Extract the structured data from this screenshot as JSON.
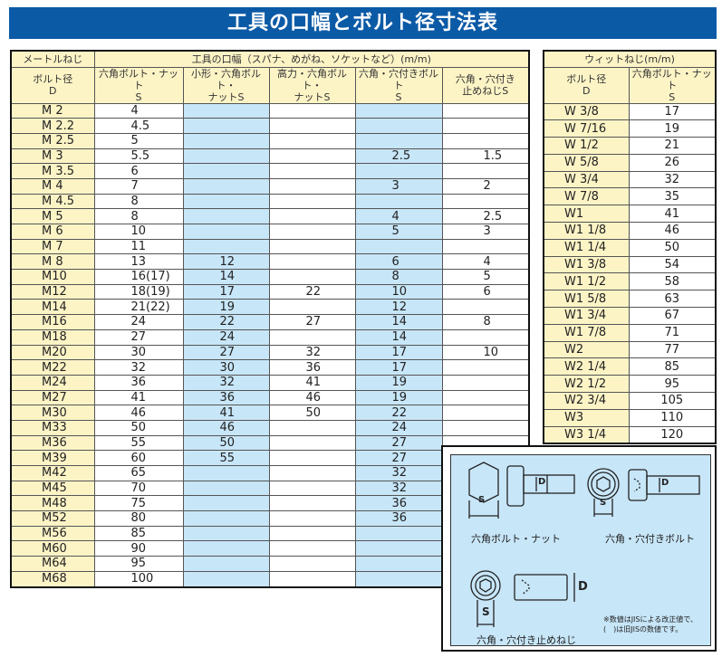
{
  "title": "工具の口幅とボルト径寸法表",
  "metric": {
    "header_group_left": "メートルねじ",
    "header_group_right": "工具の口幅（スパナ、めがね、ソケットなど）(m/m)",
    "columns": [
      "ボルト径\nD",
      "六角ボルト・ナット\nS",
      "小形・六角ボルト・\nナットS",
      "高力・六角ボルト・\nナットS",
      "六角・穴付きボルト\nS",
      "六角・穴付き\n止めねじS"
    ],
    "rows": [
      [
        "M 2",
        "4",
        "",
        "",
        "",
        ""
      ],
      [
        "M 2.2",
        "4.5",
        "",
        "",
        "",
        ""
      ],
      [
        "M 2.5",
        "5",
        "",
        "",
        "",
        ""
      ],
      [
        "M 3",
        "5.5",
        "",
        "",
        "2.5",
        "1.5"
      ],
      [
        "M 3.5",
        "6",
        "",
        "",
        "",
        ""
      ],
      [
        "M 4",
        "7",
        "",
        "",
        "3",
        "2"
      ],
      [
        "M 4.5",
        "8",
        "",
        "",
        "",
        ""
      ],
      [
        "M 5",
        "8",
        "",
        "",
        "4",
        "2.5"
      ],
      [
        "M 6",
        "10",
        "",
        "",
        "5",
        "3"
      ],
      [
        "M 7",
        "11",
        "",
        "",
        "",
        ""
      ],
      [
        "M 8",
        "13",
        "12",
        "",
        "6",
        "4"
      ],
      [
        "M10",
        "16(17)",
        "14",
        "",
        "8",
        "5"
      ],
      [
        "M12",
        "18(19)",
        "17",
        "22",
        "10",
        "6"
      ],
      [
        "M14",
        "21(22)",
        "19",
        "",
        "12",
        ""
      ],
      [
        "M16",
        "24",
        "22",
        "27",
        "14",
        "8"
      ],
      [
        "M18",
        "27",
        "24",
        "",
        "14",
        ""
      ],
      [
        "M20",
        "30",
        "27",
        "32",
        "17",
        "10"
      ],
      [
        "M22",
        "32",
        "30",
        "36",
        "17",
        ""
      ],
      [
        "M24",
        "36",
        "32",
        "41",
        "19",
        ""
      ],
      [
        "M27",
        "41",
        "36",
        "46",
        "19",
        ""
      ],
      [
        "M30",
        "46",
        "41",
        "50",
        "22",
        ""
      ],
      [
        "M33",
        "50",
        "46",
        "",
        "24",
        ""
      ],
      [
        "M36",
        "55",
        "50",
        "",
        "27",
        ""
      ],
      [
        "M39",
        "60",
        "55",
        "",
        "27",
        ""
      ],
      [
        "M42",
        "65",
        "",
        "",
        "32",
        ""
      ],
      [
        "M45",
        "70",
        "",
        "",
        "32",
        ""
      ],
      [
        "M48",
        "75",
        "",
        "",
        "36",
        ""
      ],
      [
        "M52",
        "80",
        "",
        "",
        "36",
        ""
      ],
      [
        "M56",
        "85",
        "",
        "",
        "",
        ""
      ],
      [
        "M60",
        "90",
        "",
        "",
        "",
        ""
      ],
      [
        "M64",
        "95",
        "",
        "",
        "",
        ""
      ],
      [
        "M68",
        "100",
        "",
        "",
        "",
        ""
      ]
    ]
  },
  "whitworth": {
    "header_group": "ウィットねじ(m/m)",
    "columns": [
      "ボルト径\nD",
      "六角ボルト・ナット\nS"
    ],
    "rows": [
      [
        "W 3/8",
        "17"
      ],
      [
        "W 7/16",
        "19"
      ],
      [
        "W 1/2",
        "21"
      ],
      [
        "W 5/8",
        "26"
      ],
      [
        "W 3/4",
        "32"
      ],
      [
        "W 7/8",
        "35"
      ],
      [
        "W1",
        "41"
      ],
      [
        "W1 1/8",
        "46"
      ],
      [
        "W1 1/4",
        "50"
      ],
      [
        "W1 3/8",
        "54"
      ],
      [
        "W1 1/2",
        "58"
      ],
      [
        "W1 5/8",
        "63"
      ],
      [
        "W1 3/4",
        "67"
      ],
      [
        "W1 7/8",
        "71"
      ],
      [
        "W2",
        "77"
      ],
      [
        "W2 1/4",
        "85"
      ],
      [
        "W2 1/2",
        "95"
      ],
      [
        "W2 3/4",
        "105"
      ],
      [
        "W3",
        "110"
      ],
      [
        "W3 1/4",
        "120"
      ]
    ]
  },
  "diagram": {
    "labels": {
      "s": "S",
      "d": "D"
    },
    "captions": [
      "六角ボルト・ナット",
      "六角・穴付きボルト",
      "六角・穴付き止めねじ"
    ],
    "note_lines": [
      "※数値はJISによる改正値で、",
      "(　)は旧JISの数値です。"
    ]
  },
  "colors": {
    "title_bg": "#0b5aa6",
    "header_bg": "#fdf4c6",
    "highlight_col": "#c7e6f8"
  }
}
